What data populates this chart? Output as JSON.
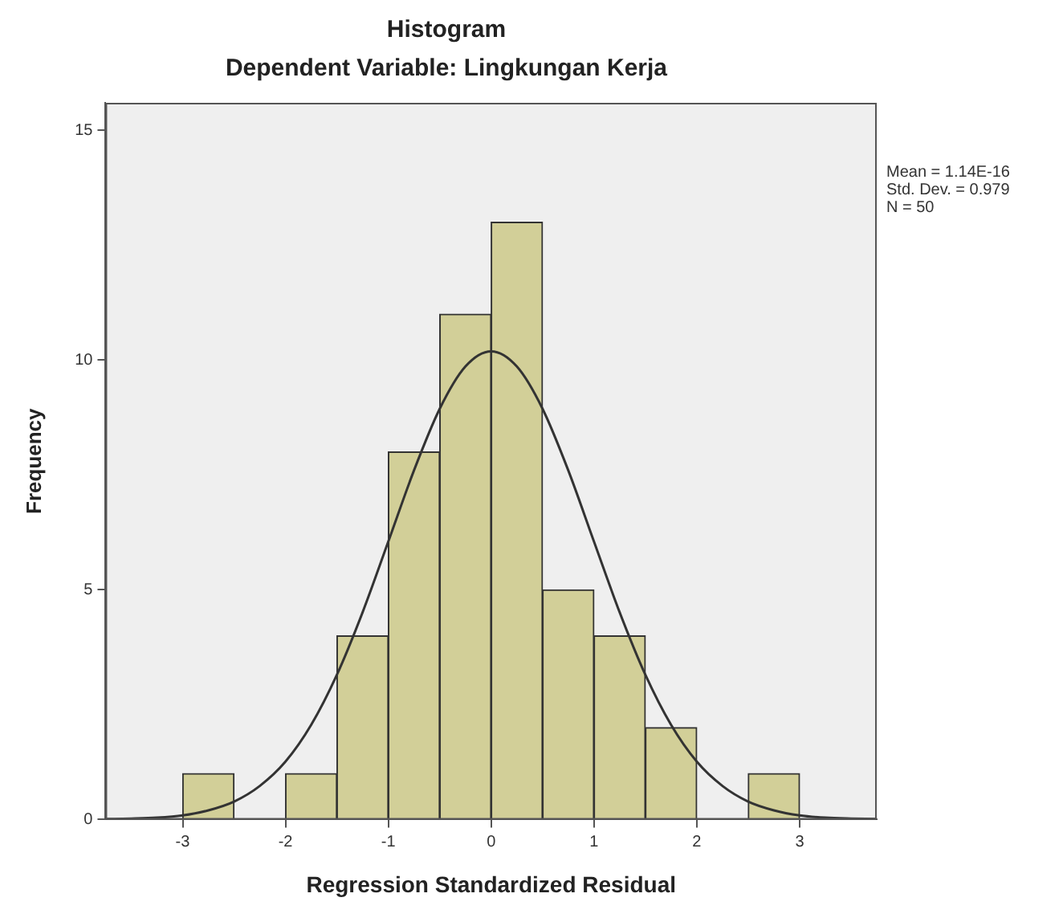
{
  "chart_data": {
    "type": "histogram",
    "title": "Histogram",
    "subtitle": "Dependent Variable: Lingkungan Kerja",
    "xlabel": "Regression Standardized Residual",
    "ylabel": "Frequency",
    "annotations": [
      "Mean = 1.14E-16",
      "Std. Dev. = 0.979",
      "N = 50"
    ],
    "xlim": [
      -3.75,
      3.75
    ],
    "xticks": [
      -3,
      -2,
      -1,
      0,
      1,
      2,
      3
    ],
    "ylim": [
      0,
      15.6
    ],
    "yticks": [
      0,
      5,
      10,
      15
    ],
    "grid": false,
    "legend": false,
    "series": [
      {
        "color": "#d2cf98",
        "bins": [
          -3,
          -2.5,
          -2,
          -1.5,
          -1,
          -0.5,
          0,
          0.5,
          1,
          1.5,
          2,
          2.5,
          3
        ],
        "values": [
          1,
          0,
          1,
          4,
          8,
          11,
          13,
          5,
          4,
          2,
          0,
          1
        ]
      },
      {
        "type": "line",
        "color": "#333333",
        "marker": "none",
        "x": [
          -3.75,
          -3.5,
          -3.25,
          -3,
          -2.75,
          -2.5,
          -2.25,
          -2,
          -1.75,
          -1.5,
          -1.25,
          -1,
          -0.75,
          -0.5,
          -0.25,
          0,
          0.25,
          0.5,
          0.75,
          1,
          1.25,
          1.5,
          1.75,
          2,
          2.25,
          2.5,
          2.75,
          3,
          3.25,
          3.5,
          3.75
        ],
        "values": [
          0.01,
          0.02,
          0.04,
          0.09,
          0.2,
          0.39,
          0.73,
          1.26,
          2.06,
          3.15,
          4.51,
          6.05,
          7.6,
          8.94,
          9.86,
          10.19,
          9.86,
          8.94,
          7.6,
          6.05,
          4.51,
          3.15,
          2.06,
          1.26,
          0.73,
          0.39,
          0.2,
          0.09,
          0.04,
          0.02,
          0.01
        ]
      }
    ]
  }
}
